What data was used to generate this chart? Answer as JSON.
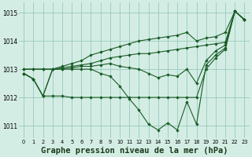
{
  "hours": [
    0,
    1,
    2,
    3,
    4,
    5,
    6,
    7,
    8,
    9,
    10,
    11,
    12,
    13,
    14,
    15,
    16,
    17,
    18,
    19,
    20,
    21,
    22,
    23
  ],
  "line_upper_top": [
    1013.0,
    1013.0,
    1013.0,
    1013.0,
    1013.1,
    1013.2,
    1013.3,
    1013.5,
    1013.6,
    1013.7,
    1013.8,
    1013.9,
    1014.0,
    1014.05,
    1014.1,
    1014.15,
    1014.2,
    1014.3,
    1014.0,
    1014.1,
    1014.15,
    1014.3,
    1015.05,
    1014.75
  ],
  "line_upper_mid": [
    1013.0,
    1013.0,
    1013.0,
    1013.0,
    1013.05,
    1013.1,
    1013.15,
    1013.2,
    1013.3,
    1013.4,
    1013.45,
    1013.5,
    1013.55,
    1013.55,
    1013.6,
    1013.65,
    1013.7,
    1013.75,
    1013.8,
    1013.85,
    1013.9,
    1013.95,
    1015.05,
    1014.75
  ],
  "line_mid": [
    1012.85,
    1012.65,
    1012.05,
    1013.0,
    1013.0,
    1013.05,
    1013.1,
    1013.1,
    1013.15,
    1013.2,
    1013.1,
    1013.05,
    1013.0,
    1012.85,
    1012.7,
    1012.8,
    1012.75,
    1013.0,
    1012.5,
    1013.3,
    1013.65,
    1013.85,
    1015.05,
    1014.75
  ],
  "line_lower_osc": [
    1012.85,
    1012.65,
    1012.05,
    1013.0,
    1013.0,
    1013.0,
    1013.0,
    1013.0,
    1012.85,
    1012.75,
    1012.4,
    1011.95,
    1011.55,
    1011.05,
    1010.85,
    1011.1,
    1010.85,
    1011.85,
    1011.05,
    1013.15,
    1013.5,
    1013.75,
    1015.05,
    1014.75
  ],
  "line_lower_base": [
    1012.85,
    1012.65,
    1012.05,
    1012.05,
    1012.05,
    1012.0,
    1012.0,
    1012.0,
    1012.0,
    1012.0,
    1012.0,
    1012.0,
    1012.0,
    1012.0,
    1012.0,
    1012.0,
    1012.0,
    1012.0,
    1012.0,
    1013.0,
    1013.4,
    1013.7,
    1015.05,
    1014.75
  ],
  "background_color": "#d4ede4",
  "grid_color": "#9ecfbf",
  "line_color": "#1a5c28",
  "title": "Graphe pression niveau de la mer (hPa)",
  "ylim": [
    1010.55,
    1015.35
  ],
  "yticks": [
    1011,
    1012,
    1013,
    1014,
    1015
  ],
  "title_fontsize": 7.5
}
